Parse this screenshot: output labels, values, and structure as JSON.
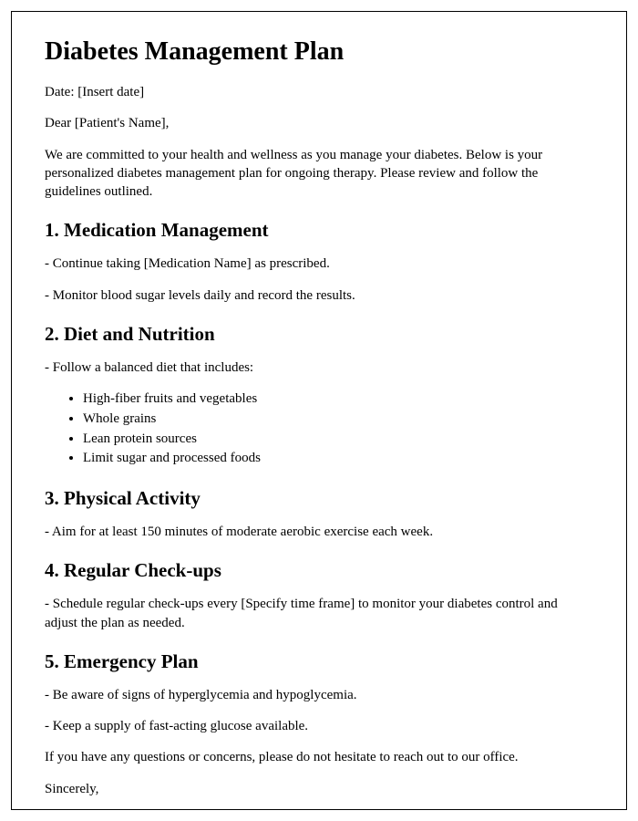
{
  "title": "Diabetes Management Plan",
  "date_line": "Date: [Insert date]",
  "salutation": "Dear [Patient's Name],",
  "intro": "We are committed to your health and wellness as you manage your diabetes. Below is your personalized diabetes management plan for ongoing therapy. Please review and follow the guidelines outlined.",
  "sections": {
    "medication": {
      "heading": "1. Medication Management",
      "items": [
        "- Continue taking [Medication Name] as prescribed.",
        "- Monitor blood sugar levels daily and record the results."
      ]
    },
    "diet": {
      "heading": "2. Diet and Nutrition",
      "lead": "- Follow a balanced diet that includes:",
      "bullets": [
        "High-fiber fruits and vegetables",
        "Whole grains",
        "Lean protein sources",
        "Limit sugar and processed foods"
      ]
    },
    "activity": {
      "heading": "3. Physical Activity",
      "items": [
        "- Aim for at least 150 minutes of moderate aerobic exercise each week."
      ]
    },
    "checkups": {
      "heading": "4. Regular Check-ups",
      "items": [
        "- Schedule regular check-ups every [Specify time frame] to monitor your diabetes control and adjust the plan as needed."
      ]
    },
    "emergency": {
      "heading": "5. Emergency Plan",
      "items": [
        "- Be aware of signs of hyperglycemia and hypoglycemia.",
        "- Keep a supply of fast-acting glucose available."
      ]
    }
  },
  "closing": "If you have any questions or concerns, please do not hesitate to reach out to our office.",
  "signoff": "Sincerely,",
  "styling": {
    "page_border_color": "#000000",
    "background_color": "#ffffff",
    "text_color": "#000000",
    "h1_fontsize": 28,
    "h2_fontsize": 21,
    "body_fontsize": 15,
    "font_family": "Times New Roman"
  }
}
